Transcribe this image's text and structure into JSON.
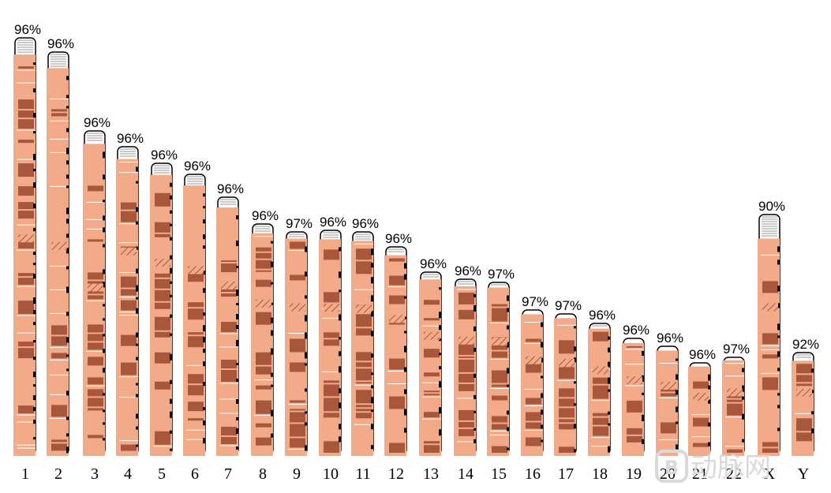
{
  "chart_data": {
    "type": "bar",
    "categories": [
      "1",
      "2",
      "3",
      "4",
      "5",
      "6",
      "7",
      "8",
      "9",
      "10",
      "11",
      "12",
      "13",
      "14",
      "15",
      "16",
      "17",
      "18",
      "19",
      "20",
      "21",
      "22",
      "X",
      "Y"
    ],
    "values": [
      96,
      96,
      96,
      96,
      96,
      96,
      96,
      96,
      97,
      96,
      96,
      96,
      96,
      96,
      97,
      97,
      97,
      96,
      96,
      96,
      96,
      97,
      90,
      92
    ],
    "labels": [
      "96%",
      "96%",
      "96%",
      "96%",
      "96%",
      "96%",
      "96%",
      "96%",
      "97%",
      "96%",
      "96%",
      "96%",
      "96%",
      "96%",
      "97%",
      "97%",
      "97%",
      "96%",
      "96%",
      "96%",
      "96%",
      "97%",
      "90%",
      "92%"
    ],
    "title": "",
    "xlabel": "",
    "ylabel": "",
    "colors": {
      "coverage": "#f2aa88",
      "band_dark": "#a8573c",
      "band_mid": "#d98f6c",
      "outline": "#000000",
      "cap_gray": "#999999"
    }
  },
  "watermark": {
    "icon": "logo-icon",
    "text": "动脉网"
  }
}
